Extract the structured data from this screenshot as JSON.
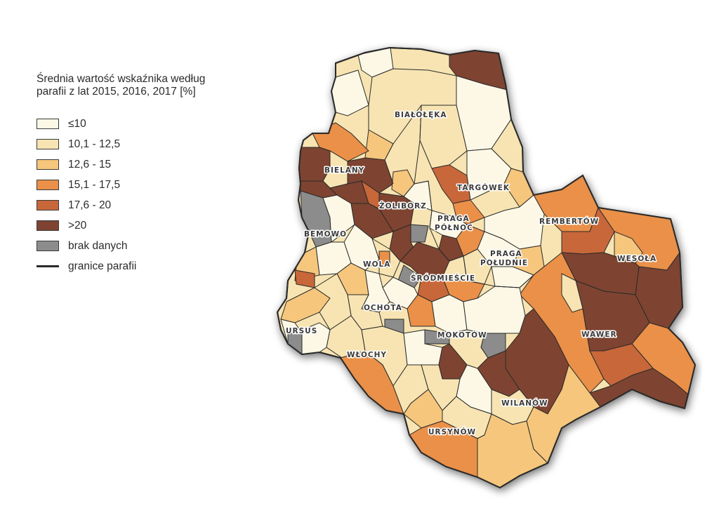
{
  "legend": {
    "title_line1": "Średnia wartość wskaźnika według",
    "title_line2": "parafii z lat 2015, 2016, 2017 [%]",
    "items": [
      {
        "label": "≤10",
        "color": "#fdf8e6"
      },
      {
        "label": "10,1 - 12,5",
        "color": "#f7e4b2"
      },
      {
        "label": "12,6 - 15",
        "color": "#f5c67c"
      },
      {
        "label": "15,1 - 17,5",
        "color": "#ea9048"
      },
      {
        "label": "17,6 - 20",
        "color": "#c8673a"
      },
      {
        "label": ">20",
        "color": "#7e4431"
      },
      {
        "label": "brak danych",
        "color": "#8c8c8c"
      }
    ],
    "boundary_label": "granice parafii"
  },
  "districts": [
    "BIAŁOŁĘKA",
    "TARGÓWEK",
    "BIELANY",
    "ŻOLIBORZ",
    "PRAGA",
    "PÓŁNOC",
    "REMBERTÓW",
    "BEMOWO",
    "WESOŁA",
    "PRAGA",
    "POŁUDNIE",
    "WOLA",
    "ŚRÓDMIEŚCIE",
    "OCHOTA",
    "URSUS",
    "MOKOTÓW",
    "WAWER",
    "WŁOCHY",
    "WILANÓW",
    "URSYNÓW"
  ]
}
